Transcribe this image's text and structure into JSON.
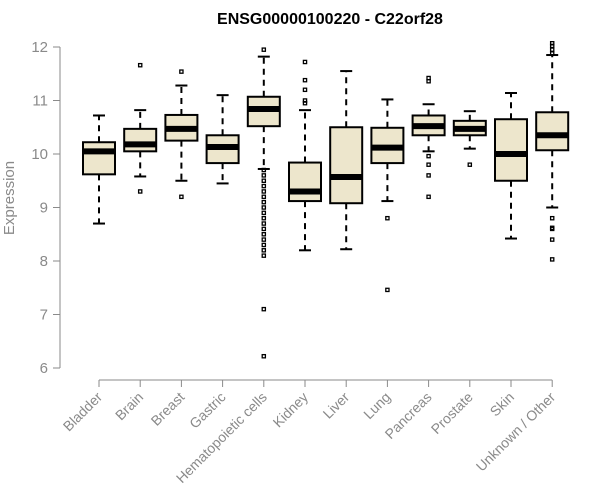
{
  "chart_data": {
    "type": "boxplot",
    "title": "ENSG00000100220 - C22orf28",
    "xlabel": "",
    "ylabel": "Expression",
    "ylim": [
      6,
      12
    ],
    "yticks": [
      6,
      7,
      8,
      9,
      10,
      11,
      12
    ],
    "categories": [
      "Bladder",
      "Brain",
      "Breast",
      "Gastric",
      "Hematopoietic cells",
      "Kidney",
      "Liver",
      "Lung",
      "Pancreas",
      "Prostate",
      "Skin",
      "Unknown / Other"
    ],
    "boxes": [
      {
        "name": "Bladder",
        "whisker_low": 8.7,
        "q1": 9.62,
        "median": 10.05,
        "q3": 10.22,
        "whisker_high": 10.72,
        "outliers": []
      },
      {
        "name": "Brain",
        "whisker_low": 9.58,
        "q1": 10.05,
        "median": 10.18,
        "q3": 10.47,
        "whisker_high": 10.82,
        "outliers": [
          11.66,
          9.3
        ]
      },
      {
        "name": "Breast",
        "whisker_low": 9.5,
        "q1": 10.25,
        "median": 10.47,
        "q3": 10.73,
        "whisker_high": 11.28,
        "outliers": [
          11.54,
          9.2
        ]
      },
      {
        "name": "Gastric",
        "whisker_low": 9.45,
        "q1": 9.83,
        "median": 10.13,
        "q3": 10.35,
        "whisker_high": 11.1,
        "outliers": []
      },
      {
        "name": "Hematopoietic cells",
        "whisker_low": 9.72,
        "q1": 10.52,
        "median": 10.84,
        "q3": 11.07,
        "whisker_high": 11.82,
        "outliers": [
          11.95,
          9.7,
          9.6,
          9.5,
          9.4,
          9.3,
          9.2,
          9.1,
          9.0,
          8.9,
          8.8,
          8.7,
          8.6,
          8.5,
          8.4,
          8.3,
          8.2,
          8.1,
          7.1,
          6.22
        ]
      },
      {
        "name": "Kidney",
        "whisker_low": 8.2,
        "q1": 9.12,
        "median": 9.3,
        "q3": 9.84,
        "whisker_high": 10.82,
        "outliers": [
          11.72,
          11.38,
          11.2,
          11.0,
          10.95
        ]
      },
      {
        "name": "Liver",
        "whisker_low": 8.22,
        "q1": 9.08,
        "median": 9.57,
        "q3": 10.5,
        "whisker_high": 11.55,
        "outliers": []
      },
      {
        "name": "Lung",
        "whisker_low": 9.12,
        "q1": 9.83,
        "median": 10.12,
        "q3": 10.49,
        "whisker_high": 11.02,
        "outliers": [
          8.8,
          7.46
        ]
      },
      {
        "name": "Pancreas",
        "whisker_low": 10.05,
        "q1": 10.35,
        "median": 10.52,
        "q3": 10.72,
        "whisker_high": 10.93,
        "outliers": [
          11.42,
          11.36,
          9.96,
          9.8,
          9.6,
          9.2
        ]
      },
      {
        "name": "Prostate",
        "whisker_low": 10.1,
        "q1": 10.35,
        "median": 10.47,
        "q3": 10.62,
        "whisker_high": 10.8,
        "outliers": [
          9.8
        ]
      },
      {
        "name": "Skin",
        "whisker_low": 8.42,
        "q1": 9.5,
        "median": 10.0,
        "q3": 10.65,
        "whisker_high": 11.14,
        "outliers": []
      },
      {
        "name": "Unknown / Other",
        "whisker_low": 9.0,
        "q1": 10.07,
        "median": 10.35,
        "q3": 10.78,
        "whisker_high": 11.85,
        "outliers": [
          12.07,
          12.02,
          11.95,
          11.88,
          8.8,
          8.62,
          8.6,
          8.4,
          8.03
        ]
      }
    ]
  }
}
